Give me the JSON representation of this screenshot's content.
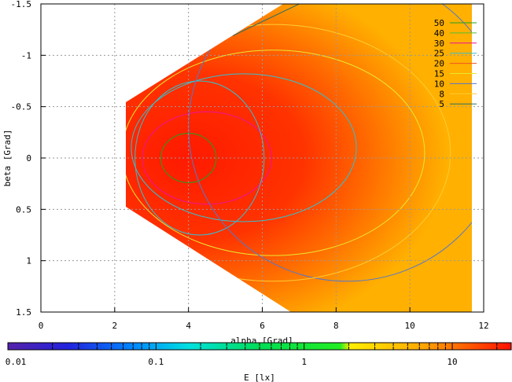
{
  "chart_data": {
    "type": "heatmap",
    "title": "",
    "xlabel": "alpha [Grad]",
    "ylabel": "beta [Grad]",
    "xlim": [
      0,
      12
    ],
    "ylim": [
      1.5,
      -1.5
    ],
    "x_ticks": [
      "0",
      "2",
      "4",
      "6",
      "8",
      "10",
      "12"
    ],
    "y_ticks": [
      "-1.5",
      "-1",
      "-0.5",
      "0",
      "0.5",
      "1",
      "1.5"
    ],
    "grid": true,
    "legend_position": "top-right",
    "peak": {
      "alpha": 4.0,
      "beta": 0.0
    },
    "contour_levels": [
      {
        "label": "50",
        "value": 50,
        "color": "#22a022"
      },
      {
        "label": "40",
        "value": 40,
        "color": "#55bb33"
      },
      {
        "label": "30",
        "value": 30,
        "color": "#ee1199"
      },
      {
        "label": "25",
        "value": 25,
        "color": "#33c0d0"
      },
      {
        "label": "20",
        "value": 20,
        "color": "#ee5522"
      },
      {
        "label": "15",
        "value": 15,
        "color": "#e8e830"
      },
      {
        "label": "10",
        "value": 10,
        "color": "#5577cc"
      },
      {
        "label": "8",
        "value": 8,
        "color": "#ffcc33"
      },
      {
        "label": "5",
        "value": 5,
        "color": "#2f6f5f"
      }
    ],
    "colorbar": {
      "label": "E [lx]",
      "scale": "log",
      "range": [
        0.01,
        25
      ],
      "ticks": [
        "0.01",
        "0.1",
        "1",
        "10"
      ]
    }
  }
}
